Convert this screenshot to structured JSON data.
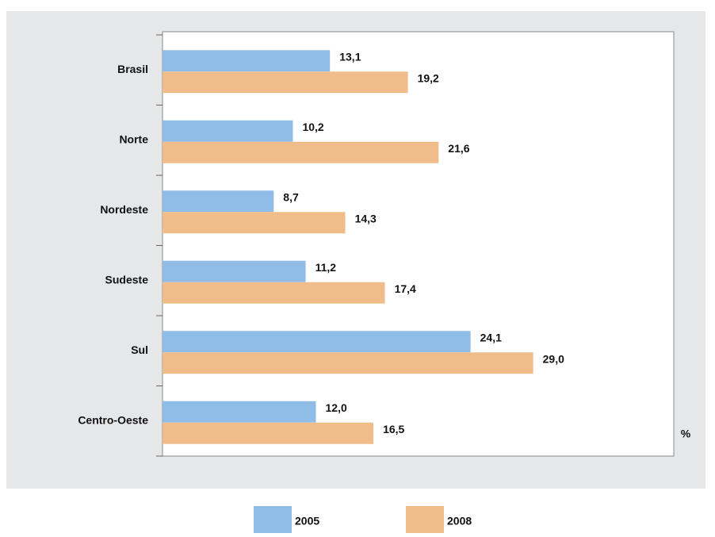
{
  "chart_data": {
    "type": "hbar",
    "categories": [
      "Brasil",
      "Norte",
      "Nordeste",
      "Sudeste",
      "Sul",
      "Centro-Oeste"
    ],
    "series": [
      {
        "name": "2005",
        "color": "#8fbde8",
        "values": [
          13.1,
          10.2,
          8.7,
          11.2,
          24.1,
          12.0
        ],
        "value_labels": [
          "13,1",
          "10,2",
          "8,7",
          "11,2",
          "24,1",
          "12,0"
        ]
      },
      {
        "name": "2008",
        "color": "#f0bd8a",
        "values": [
          19.2,
          21.6,
          14.3,
          17.4,
          29.0,
          16.5
        ],
        "value_labels": [
          "19,2",
          "21,6",
          "14,3",
          "17,4",
          "29,0",
          "16,5"
        ]
      }
    ],
    "xlabel": "%",
    "xlim": [
      0,
      40
    ]
  }
}
